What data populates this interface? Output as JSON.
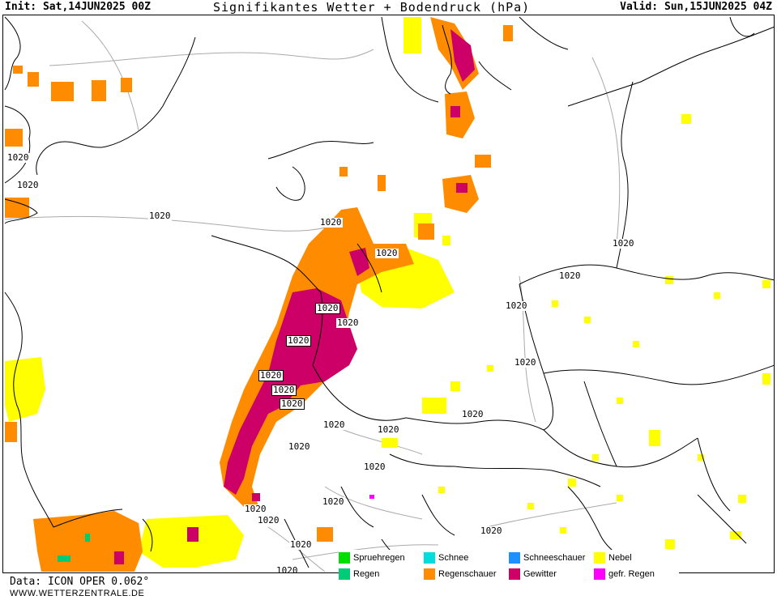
{
  "header": {
    "init": "Init: Sat,14JUN2025 00Z",
    "title": "Signifikantes Wetter + Bodendruck (hPa)",
    "valid": "Valid: Sun,15JUN2025 04Z"
  },
  "map": {
    "colors": {
      "coast": "#000000",
      "border": "#000000",
      "isobar": "#aaaaaa",
      "nebel": "#ffff00",
      "regenschauer": "#ff8c00",
      "gewitter": "#cc0066",
      "spruehregen": "#00dd00",
      "regen": "#00cc77",
      "gefr_regen": "#ff00ff"
    },
    "isobar_labels": [
      {
        "text": "1020",
        "boxed": false
      },
      {
        "text": "1020",
        "boxed": false
      },
      {
        "text": "1020",
        "boxed": false
      },
      {
        "text": "1020",
        "boxed": false
      },
      {
        "text": "1020",
        "boxed": false
      },
      {
        "text": "1020",
        "boxed": false
      },
      {
        "text": "1020",
        "boxed": false
      },
      {
        "text": "1020",
        "boxed": false
      },
      {
        "text": "1020",
        "boxed": true
      },
      {
        "text": "1020",
        "boxed": false
      },
      {
        "text": "1020",
        "boxed": true
      },
      {
        "text": "1020",
        "boxed": true
      },
      {
        "text": "1020",
        "boxed": true
      },
      {
        "text": "1020",
        "boxed": true
      },
      {
        "text": "1020",
        "boxed": false
      },
      {
        "text": "1020",
        "boxed": false
      },
      {
        "text": "1020",
        "boxed": false
      },
      {
        "text": "1020",
        "boxed": false
      },
      {
        "text": "1020",
        "boxed": false
      },
      {
        "text": "1020",
        "boxed": false
      },
      {
        "text": "1020",
        "boxed": false
      },
      {
        "text": "1020",
        "boxed": false
      },
      {
        "text": "1020",
        "boxed": false
      },
      {
        "text": "1020",
        "boxed": false
      },
      {
        "text": "1020",
        "boxed": false
      },
      {
        "text": "1020",
        "boxed": false
      }
    ]
  },
  "legend": {
    "items": [
      {
        "label": "Spruehregen",
        "color": "#00dd00"
      },
      {
        "label": "Schnee",
        "color": "#00dddd"
      },
      {
        "label": "Schneeschauer",
        "color": "#1e90ff"
      },
      {
        "label": "Nebel",
        "color": "#ffff00"
      },
      {
        "label": "Regen",
        "color": "#00cc77"
      },
      {
        "label": "Regenschauer",
        "color": "#ff8c00"
      },
      {
        "label": "Gewitter",
        "color": "#cc0066"
      },
      {
        "label": "gefr. Regen",
        "color": "#ff00ff"
      }
    ]
  },
  "footer": {
    "data_source": "Data: ICON OPER 0.062°",
    "website": "WWW.WETTERZENTRALE.DE"
  }
}
